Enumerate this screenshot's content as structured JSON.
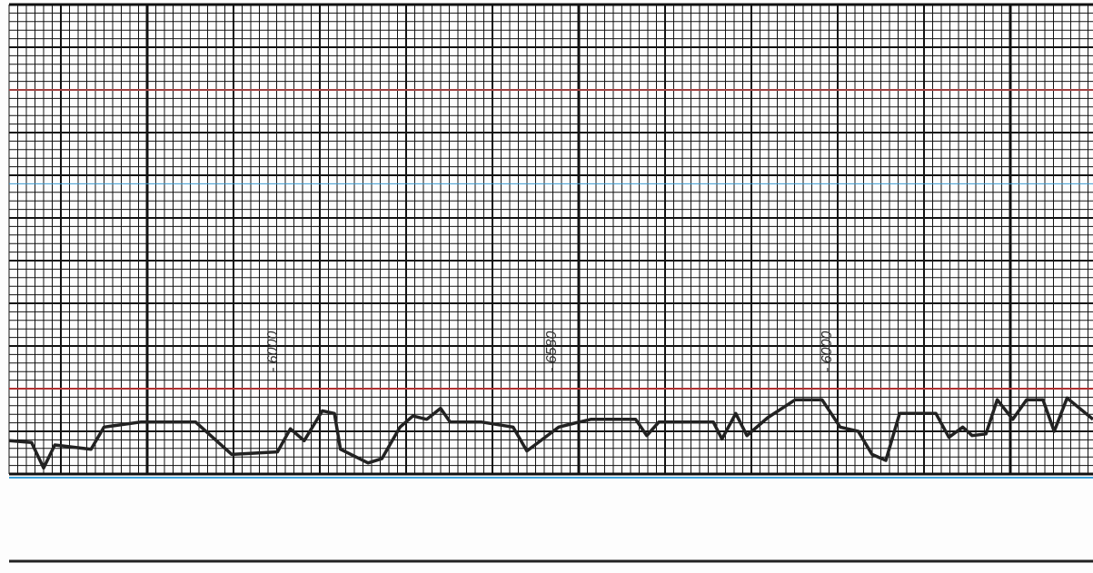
{
  "chart_data": {
    "type": "line",
    "annotations": [
      "- 6000",
      "- 6580",
      "- 6000"
    ],
    "x": [
      0,
      2.6,
      4,
      5.3,
      9.5,
      11,
      15.3,
      21.6,
      25.8,
      31.1,
      32.6,
      34.2,
      36.3,
      37.7,
      38.4,
      41.6,
      43.2,
      45.3,
      46.8,
      48.4,
      50,
      51.1,
      54.7,
      58.4,
      60,
      62.1,
      63.7,
      65.3,
      67.4,
      72.6,
      73.9,
      75.3,
      81.6,
      82.6,
      84.2,
      85.5,
      87.9,
      91.1,
      94.2,
      96.3,
      98.4,
      100,
      101.6,
      103.2,
      107.4,
      108.9,
      110.5,
      111.6,
      113.2,
      114.5,
      116.3,
      117.9,
      119.8,
      121.1,
      122.6,
      125.6
    ],
    "values": [
      3.9,
      3.7,
      0.7,
      3.4,
      2.9,
      5.5,
      6.1,
      6.1,
      2.3,
      2.6,
      5.3,
      3.9,
      7.4,
      7.1,
      2.9,
      1.3,
      1.8,
      5.5,
      6.8,
      6.4,
      7.7,
      6.1,
      6.1,
      5.5,
      2.7,
      4.3,
      5.5,
      5.9,
      6.4,
      6.4,
      4.5,
      6.1,
      6.1,
      4.1,
      7.1,
      4.5,
      6.6,
      8.7,
      8.7,
      5.5,
      5,
      2.3,
      1.6,
      7.1,
      7.1,
      4.3,
      5.5,
      4.5,
      4.7,
      8.7,
      6.4,
      8.7,
      8.7,
      5,
      8.9,
      6.4
    ],
    "color": "#222222",
    "xlim": [
      0,
      125.6
    ],
    "ylim": [
      0,
      55
    ],
    "grid": true
  }
}
